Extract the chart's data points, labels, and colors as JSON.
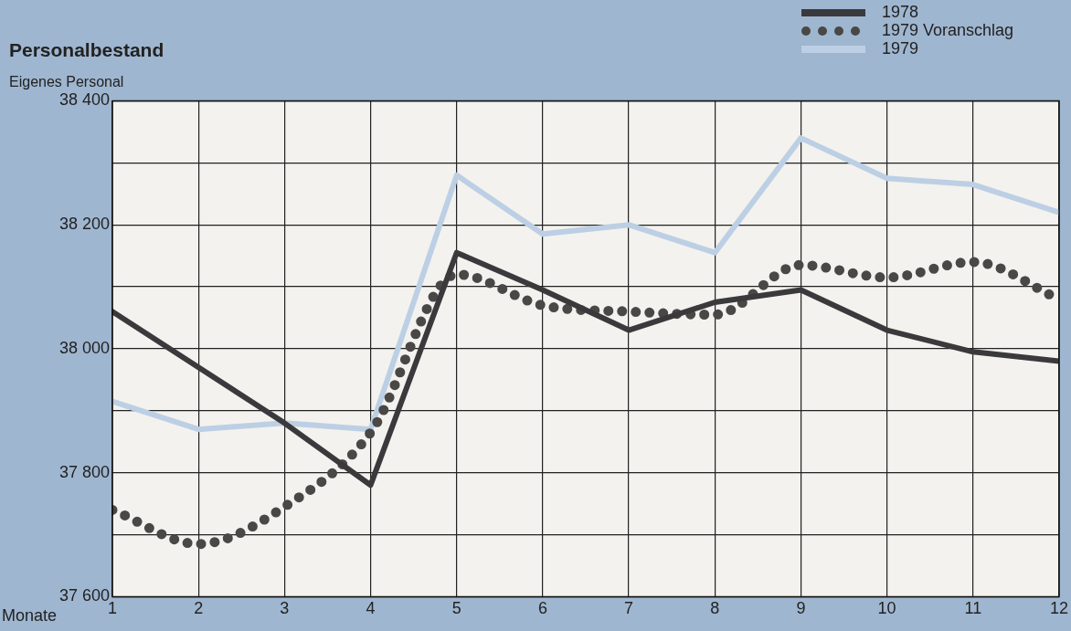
{
  "chart_data": {
    "type": "line",
    "title": "Personalbestand",
    "subtitle": "Eigenes Personal",
    "xlabel": "Monate",
    "x": [
      1,
      2,
      3,
      4,
      5,
      6,
      7,
      8,
      9,
      10,
      11,
      12
    ],
    "xlim": [
      1,
      12
    ],
    "xticks": [
      1,
      2,
      3,
      4,
      5,
      6,
      7,
      8,
      9,
      10,
      11,
      12
    ],
    "ylim": [
      37600,
      38400
    ],
    "yticks": [
      {
        "value": 37600,
        "label": "37 600"
      },
      {
        "value": 37700,
        "label": null
      },
      {
        "value": 37800,
        "label": "37 800"
      },
      {
        "value": 37900,
        "label": null
      },
      {
        "value": 38000,
        "label": "38 000"
      },
      {
        "value": 38100,
        "label": null
      },
      {
        "value": 38200,
        "label": "38 200"
      },
      {
        "value": 38300,
        "label": null
      },
      {
        "value": 38400,
        "label": "38 400"
      }
    ],
    "grid": true,
    "legend": "top right",
    "marker": "none",
    "series": [
      {
        "name": "1978",
        "color": "#3a3a3c",
        "line_style": "solid",
        "values": [
          38060,
          37970,
          37880,
          37780,
          38155,
          38095,
          38030,
          38075,
          38095,
          38030,
          37995,
          37980
        ]
      },
      {
        "name": "1979 Voranschlag",
        "color": "#4a4747",
        "line_style": "dotted",
        "values": [
          37740,
          37685,
          37745,
          37865,
          38120,
          38070,
          38060,
          38055,
          38135,
          38115,
          38140,
          38080
        ]
      },
      {
        "name": "1979",
        "color": "#bccfe4",
        "line_style": "solid",
        "values": [
          37915,
          37870,
          37880,
          37870,
          38280,
          38185,
          38200,
          38155,
          38340,
          38275,
          38265,
          38220
        ]
      }
    ]
  }
}
